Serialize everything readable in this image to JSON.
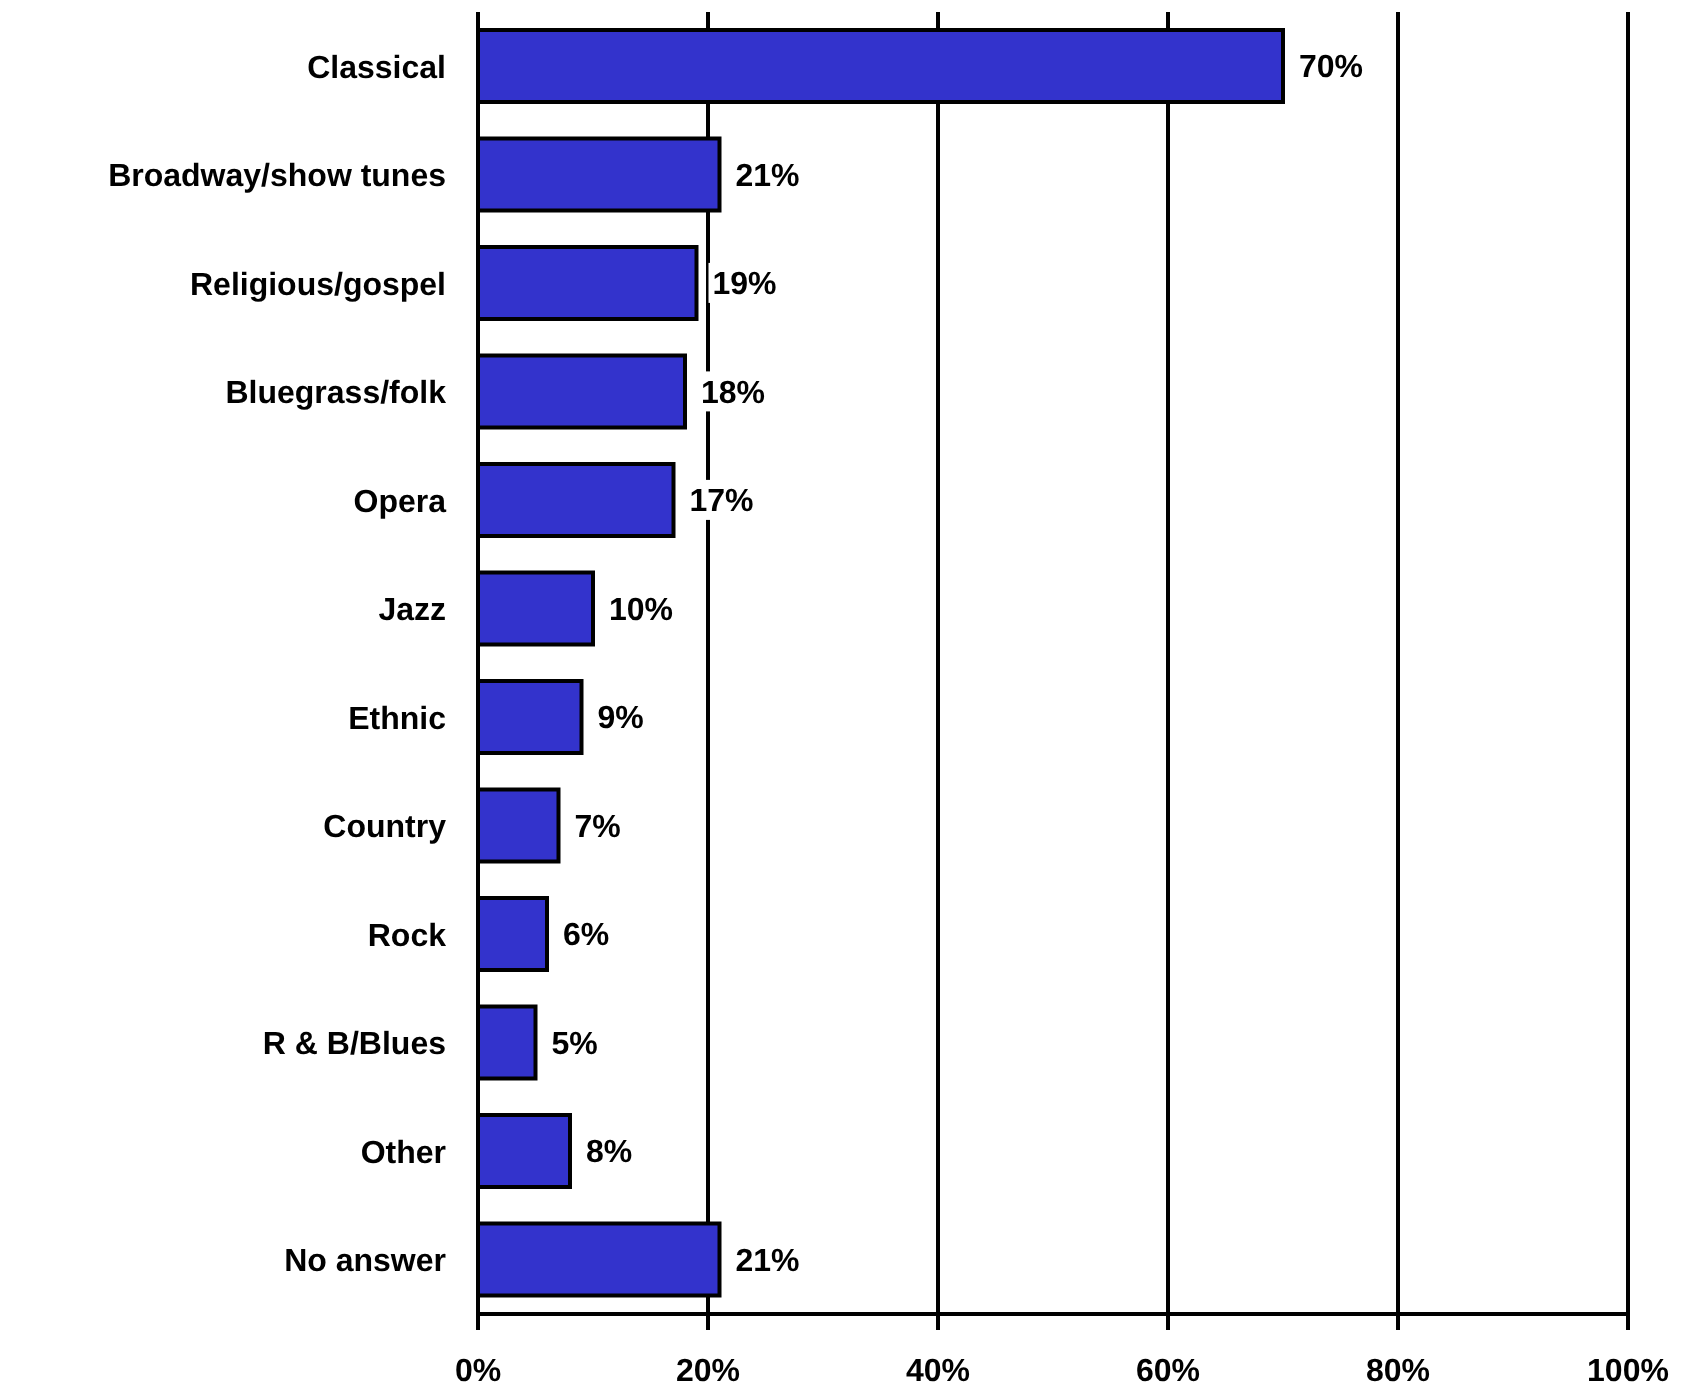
{
  "chart_data": {
    "type": "bar",
    "orientation": "horizontal",
    "categories": [
      "Classical",
      "Broadway/show tunes",
      "Religious/gospel",
      "Bluegrass/folk",
      "Opera",
      "Jazz",
      "Ethnic",
      "Country",
      "Rock",
      "R & B/Blues",
      "Other",
      "No answer"
    ],
    "values": [
      70,
      21,
      19,
      18,
      17,
      10,
      9,
      7,
      6,
      5,
      8,
      21
    ],
    "value_labels": [
      "70%",
      "21%",
      "19%",
      "18%",
      "17%",
      "10%",
      "9%",
      "7%",
      "6%",
      "5%",
      "8%",
      "21%"
    ],
    "color": "#3333cc",
    "xlim": [
      0,
      100
    ],
    "xticks": [
      {
        "value": 0,
        "label": "0%"
      },
      {
        "value": 20,
        "label": "20%"
      },
      {
        "value": 40,
        "label": "40%"
      },
      {
        "value": 60,
        "label": "60%"
      },
      {
        "value": 80,
        "label": "80%"
      },
      {
        "value": 100,
        "label": "100%"
      }
    ],
    "grid": "x"
  }
}
